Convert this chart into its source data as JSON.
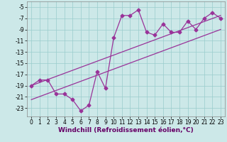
{
  "xlabel": "Windchill (Refroidissement éolien,°C)",
  "ylabel": "",
  "xlim": [
    -0.5,
    23.5
  ],
  "ylim": [
    -24.5,
    -4.0
  ],
  "yticks": [
    -5,
    -7,
    -9,
    -11,
    -13,
    -15,
    -17,
    -19,
    -21,
    -23
  ],
  "xticks": [
    0,
    1,
    2,
    3,
    4,
    5,
    6,
    7,
    8,
    9,
    10,
    11,
    12,
    13,
    14,
    15,
    16,
    17,
    18,
    19,
    20,
    21,
    22,
    23
  ],
  "bg_color": "#cce8e8",
  "grid_color": "#99cccc",
  "line_color": "#993399",
  "main_x": [
    0,
    1,
    2,
    3,
    4,
    5,
    6,
    7,
    8,
    9,
    10,
    11,
    12,
    13,
    14,
    15,
    16,
    17,
    18,
    19,
    20,
    21,
    22,
    23
  ],
  "main_y": [
    -19,
    -18,
    -18,
    -20.5,
    -20.5,
    -21.5,
    -23.5,
    -22.5,
    -16.5,
    -19.5,
    -10.5,
    -6.5,
    -6.5,
    -5.5,
    -9.5,
    -10,
    -8,
    -9.5,
    -9.5,
    -7.5,
    -9,
    -7,
    -6,
    -7
  ],
  "line2_x": [
    0,
    23
  ],
  "line2_y": [
    -19.0,
    -6.5
  ],
  "line3_x": [
    0,
    23
  ],
  "line3_y": [
    -21.5,
    -9.0
  ],
  "marker": "D",
  "markersize": 2.5,
  "linewidth": 0.9,
  "xlabel_fontsize": 6.5,
  "tick_fontsize": 5.5
}
